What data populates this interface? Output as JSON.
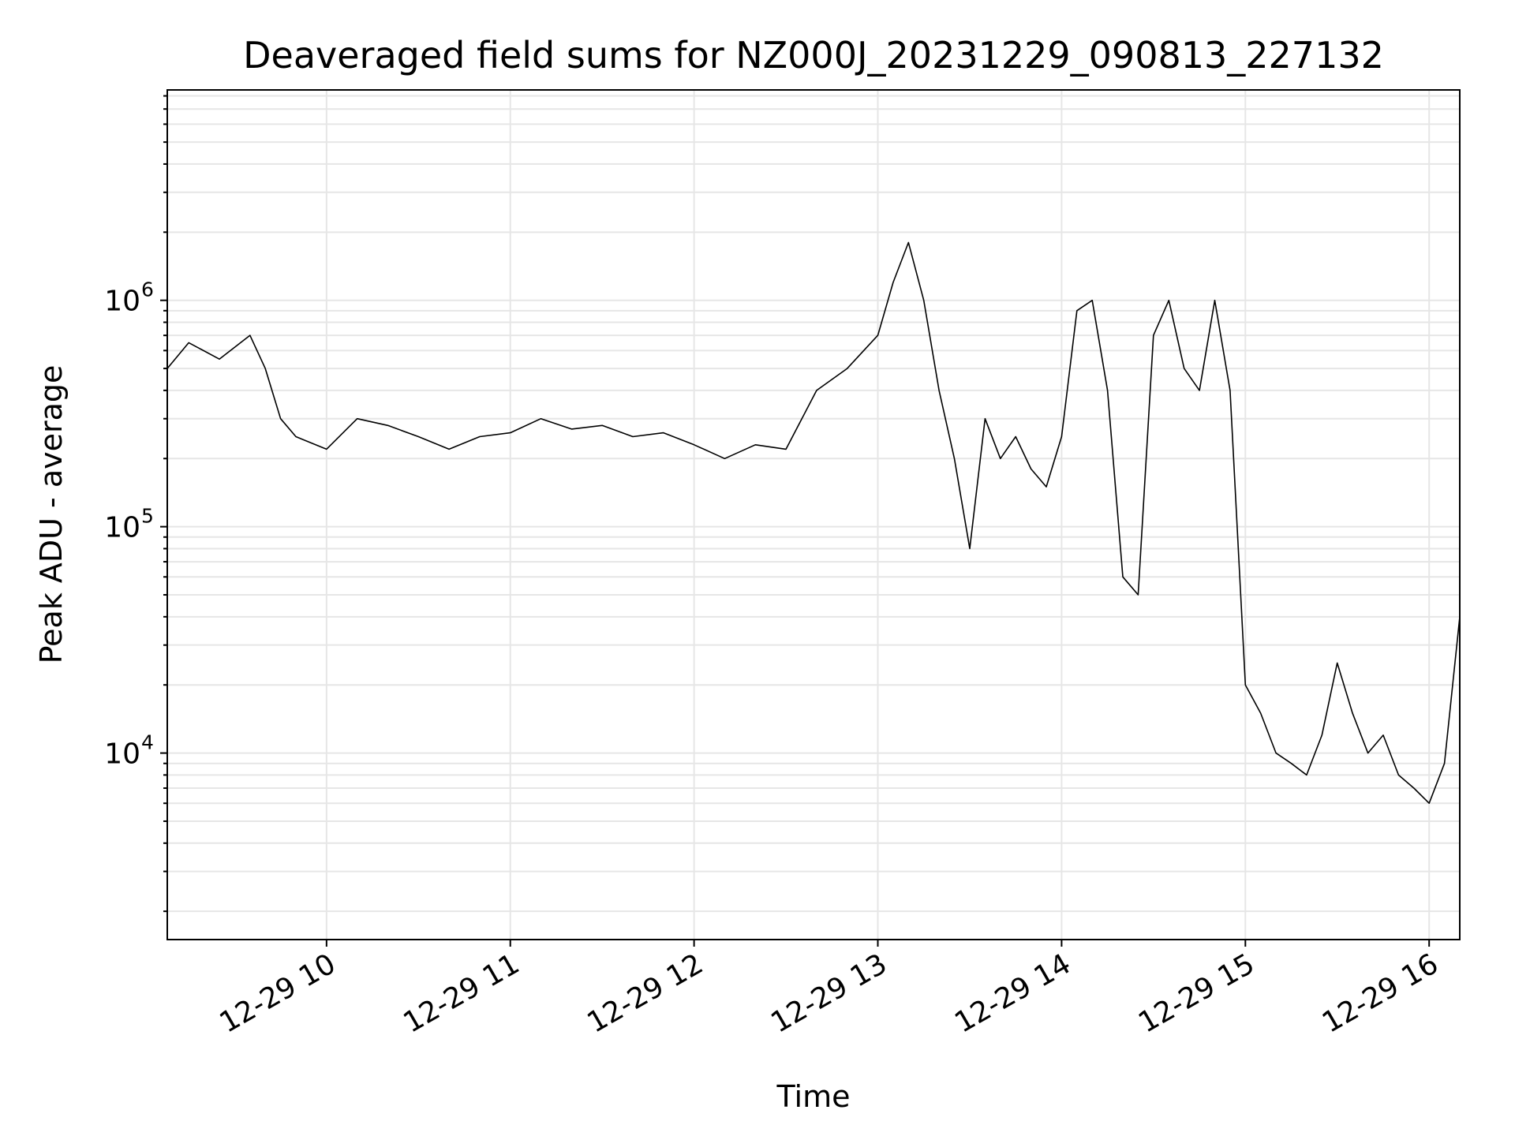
{
  "chart_data": {
    "type": "line",
    "title": "Deaveraged field sums for NZ000J_20231229_090813_227132",
    "xlabel": "Time",
    "ylabel": "Peak ADU - average",
    "yscale": "log",
    "ylim": [
      1500,
      8500000
    ],
    "xlim": [
      "2023-12-29 09:08",
      "2023-12-29 16:10"
    ],
    "grid": true,
    "line_color": "#000000",
    "grid_color": "#e6e6e6",
    "x_ticks": [
      {
        "value": "2023-12-29 10:00",
        "label": "12-29 10"
      },
      {
        "value": "2023-12-29 11:00",
        "label": "12-29 11"
      },
      {
        "value": "2023-12-29 12:00",
        "label": "12-29 12"
      },
      {
        "value": "2023-12-29 13:00",
        "label": "12-29 13"
      },
      {
        "value": "2023-12-29 14:00",
        "label": "12-29 14"
      },
      {
        "value": "2023-12-29 15:00",
        "label": "12-29 15"
      },
      {
        "value": "2023-12-29 16:00",
        "label": "12-29 16"
      }
    ],
    "y_ticks": [
      {
        "value": 10000,
        "base": "10",
        "exp": "4"
      },
      {
        "value": 100000,
        "base": "10",
        "exp": "5"
      },
      {
        "value": 1000000,
        "base": "10",
        "exp": "6"
      }
    ],
    "series": [
      {
        "x": [
          "2023-12-29 09:08",
          "2023-12-29 09:15",
          "2023-12-29 09:25",
          "2023-12-29 09:35",
          "2023-12-29 09:40",
          "2023-12-29 09:45",
          "2023-12-29 09:50",
          "2023-12-29 10:00",
          "2023-12-29 10:10",
          "2023-12-29 10:20",
          "2023-12-29 10:30",
          "2023-12-29 10:40",
          "2023-12-29 10:50",
          "2023-12-29 11:00",
          "2023-12-29 11:10",
          "2023-12-29 11:20",
          "2023-12-29 11:30",
          "2023-12-29 11:40",
          "2023-12-29 11:50",
          "2023-12-29 12:00",
          "2023-12-29 12:10",
          "2023-12-29 12:20",
          "2023-12-29 12:30",
          "2023-12-29 12:40",
          "2023-12-29 12:50",
          "2023-12-29 13:00",
          "2023-12-29 13:05",
          "2023-12-29 13:10",
          "2023-12-29 13:15",
          "2023-12-29 13:20",
          "2023-12-29 13:25",
          "2023-12-29 13:30",
          "2023-12-29 13:35",
          "2023-12-29 13:40",
          "2023-12-29 13:45",
          "2023-12-29 13:50",
          "2023-12-29 13:55",
          "2023-12-29 14:00",
          "2023-12-29 14:05",
          "2023-12-29 14:10",
          "2023-12-29 14:15",
          "2023-12-29 14:20",
          "2023-12-29 14:25",
          "2023-12-29 14:30",
          "2023-12-29 14:35",
          "2023-12-29 14:40",
          "2023-12-29 14:45",
          "2023-12-29 14:50",
          "2023-12-29 14:55",
          "2023-12-29 15:00",
          "2023-12-29 15:05",
          "2023-12-29 15:10",
          "2023-12-29 15:15",
          "2023-12-29 15:20",
          "2023-12-29 15:25",
          "2023-12-29 15:30",
          "2023-12-29 15:35",
          "2023-12-29 15:40",
          "2023-12-29 15:45",
          "2023-12-29 15:50",
          "2023-12-29 15:55",
          "2023-12-29 16:00",
          "2023-12-29 16:05",
          "2023-12-29 16:10"
        ],
        "y": [
          500000,
          650000,
          550000,
          700000,
          500000,
          300000,
          250000,
          220000,
          300000,
          280000,
          250000,
          220000,
          250000,
          260000,
          300000,
          270000,
          280000,
          250000,
          260000,
          230000,
          200000,
          230000,
          220000,
          400000,
          500000,
          700000,
          1200000,
          1800000,
          1000000,
          400000,
          200000,
          80000,
          300000,
          200000,
          250000,
          180000,
          150000,
          250000,
          900000,
          1000000,
          400000,
          60000,
          50000,
          700000,
          1000000,
          500000,
          400000,
          1000000,
          400000,
          20000,
          15000,
          10000,
          9000,
          8000,
          12000,
          25000,
          15000,
          10000,
          12000,
          8000,
          7000,
          6000,
          9000,
          40000
        ]
      }
    ]
  }
}
